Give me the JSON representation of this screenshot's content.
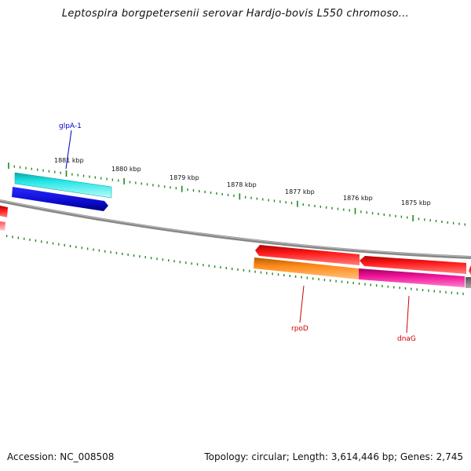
{
  "title": "Leptospira borgpetersenii serovar Hardjo-bovis L550 chromoso...",
  "footer": {
    "accession": "Accession: NC_008508",
    "summary": "Topology: circular; Length: 3,614,446 bp; Genes: 2,745"
  },
  "tick_labels": [
    "1881 kbp",
    "1880 kbp",
    "1879 kbp",
    "1878 kbp",
    "1877 kbp",
    "1876 kbp",
    "1875 kbp"
  ],
  "gene_labels": [
    {
      "name": "glpA-1",
      "color": "#0000cc"
    },
    {
      "name": "rpoD",
      "color": "#cc0000"
    },
    {
      "name": "dnaG",
      "color": "#cc0000"
    }
  ],
  "colors": {
    "backbone": "#888888",
    "tick": "#228822",
    "cyan": "#22e6e6",
    "blue": "#1010dd",
    "red": "#ee1111",
    "orange": "#ff8c1a",
    "magenta": "#ee1199",
    "pink": "#ff8888"
  }
}
